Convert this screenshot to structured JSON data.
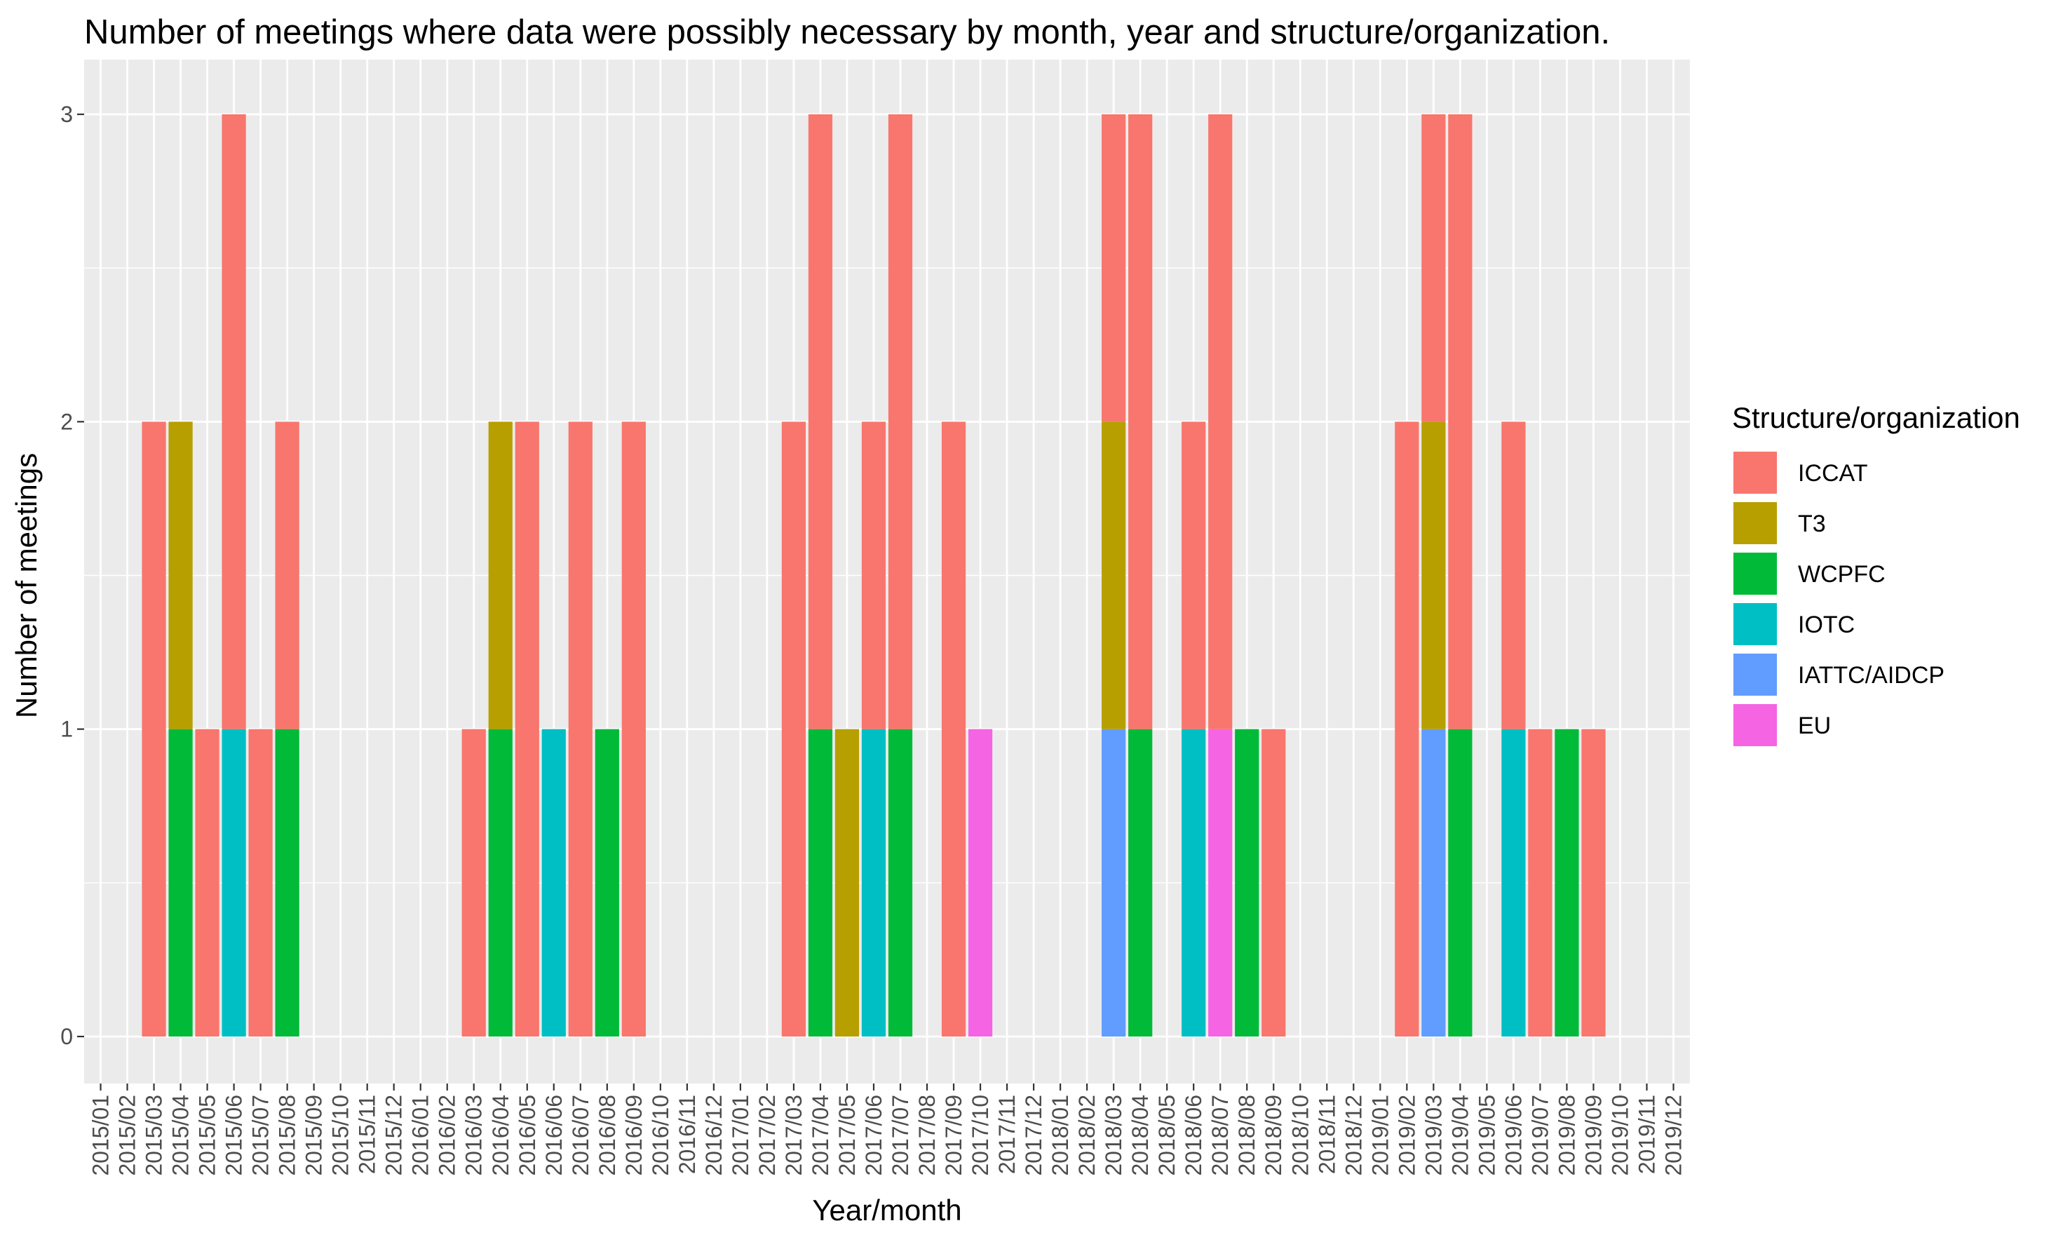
{
  "chart_data": {
    "type": "bar",
    "stacked": true,
    "title": "Number of meetings where data were possibly necessary by month, year and structure/organization.",
    "xlabel": "Year/month",
    "ylabel": "Number of meetings",
    "ylim": [
      0,
      3
    ],
    "yticks": [
      "0",
      "1",
      "2",
      "3"
    ],
    "grid": true,
    "legend_position": "right",
    "legend_title": "Structure/organization",
    "categories": [
      "2015/01",
      "2015/02",
      "2015/03",
      "2015/04",
      "2015/05",
      "2015/06",
      "2015/07",
      "2015/08",
      "2015/09",
      "2015/10",
      "2015/11",
      "2015/12",
      "2016/01",
      "2016/02",
      "2016/03",
      "2016/04",
      "2016/05",
      "2016/06",
      "2016/07",
      "2016/08",
      "2016/09",
      "2016/10",
      "2016/11",
      "2016/12",
      "2017/01",
      "2017/02",
      "2017/03",
      "2017/04",
      "2017/05",
      "2017/06",
      "2017/07",
      "2017/08",
      "2017/09",
      "2017/10",
      "2017/11",
      "2017/12",
      "2018/01",
      "2018/02",
      "2018/03",
      "2018/04",
      "2018/05",
      "2018/06",
      "2018/07",
      "2018/08",
      "2018/09",
      "2018/10",
      "2018/11",
      "2018/12",
      "2019/01",
      "2019/02",
      "2019/03",
      "2019/04",
      "2019/05",
      "2019/06",
      "2019/07",
      "2019/08",
      "2019/09",
      "2019/10",
      "2019/11",
      "2019/12"
    ],
    "series": [
      {
        "name": "ICCAT",
        "color": "#F8766D",
        "values": {
          "2015/03": 2,
          "2015/05": 1,
          "2015/06": 2,
          "2015/07": 1,
          "2015/08": 1,
          "2016/03": 1,
          "2016/05": 2,
          "2016/07": 2,
          "2016/09": 2,
          "2017/03": 2,
          "2017/04": 2,
          "2017/06": 1,
          "2017/07": 2,
          "2017/09": 2,
          "2018/03": 1,
          "2018/04": 2,
          "2018/06": 1,
          "2018/07": 2,
          "2018/09": 1,
          "2019/02": 2,
          "2019/03": 1,
          "2019/04": 2,
          "2019/06": 1,
          "2019/07": 1,
          "2019/09": 1
        }
      },
      {
        "name": "T3",
        "color": "#B79F00",
        "values": {
          "2015/04": 1,
          "2016/04": 1,
          "2017/05": 1,
          "2018/03": 1,
          "2019/03": 1
        }
      },
      {
        "name": "WCPFC",
        "color": "#00BA38",
        "values": {
          "2015/04": 1,
          "2015/08": 1,
          "2016/04": 1,
          "2016/08": 1,
          "2017/04": 1,
          "2017/07": 1,
          "2018/04": 1,
          "2018/08": 1,
          "2019/04": 1,
          "2019/08": 1
        }
      },
      {
        "name": "IOTC",
        "color": "#00BFC4",
        "values": {
          "2015/06": 1,
          "2016/06": 1,
          "2017/06": 1,
          "2018/06": 1,
          "2019/06": 1
        }
      },
      {
        "name": "IATTC/AIDCP",
        "color": "#619CFF",
        "values": {
          "2018/03": 1,
          "2019/03": 1
        }
      },
      {
        "name": "EU",
        "color": "#F564E3",
        "values": {
          "2017/10": 1,
          "2018/07": 1
        }
      }
    ]
  }
}
